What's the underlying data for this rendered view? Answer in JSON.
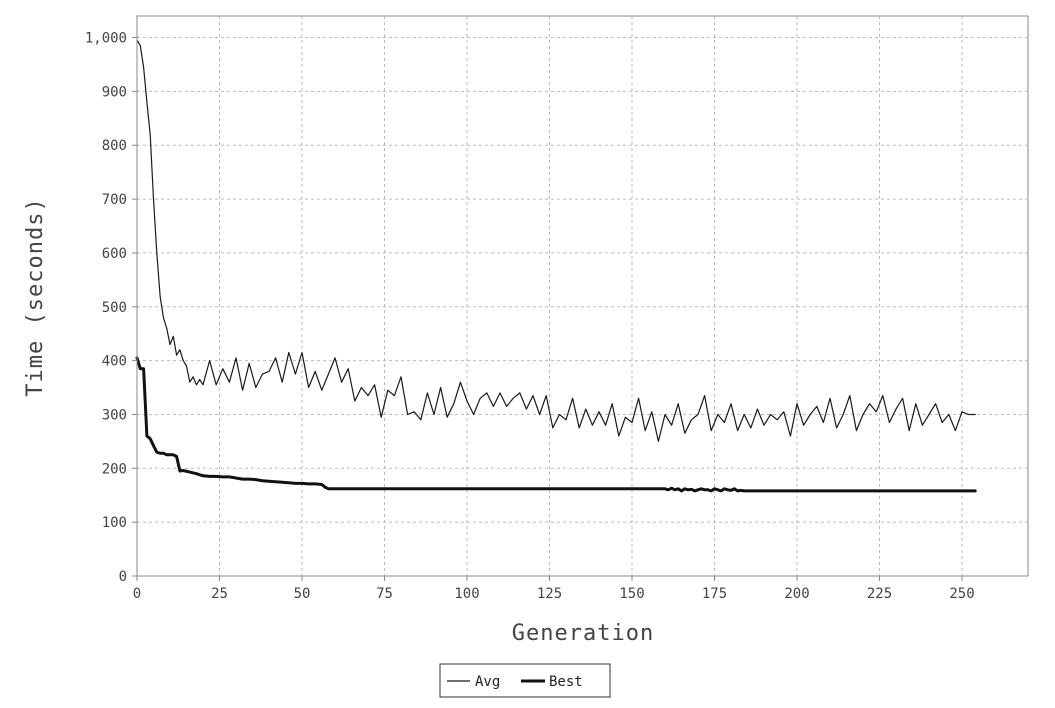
{
  "chart_data": {
    "type": "line",
    "xlabel": "Generation",
    "ylabel": "Time (seconds)",
    "xlim": [
      0,
      270
    ],
    "ylim": [
      0,
      1040
    ],
    "x_ticks": [
      0,
      25,
      50,
      75,
      100,
      125,
      150,
      175,
      200,
      225,
      250
    ],
    "x_tick_labels": [
      "0",
      "25",
      "50",
      "75",
      "100",
      "125",
      "150",
      "175",
      "200",
      "225",
      "250"
    ],
    "y_ticks": [
      0,
      100,
      200,
      300,
      400,
      500,
      600,
      700,
      800,
      900,
      1000
    ],
    "y_tick_labels": [
      "0",
      "100",
      "200",
      "300",
      "400",
      "500",
      "600",
      "700",
      "800",
      "900",
      "1,000"
    ],
    "grid": true,
    "legend_position": "bottom-center",
    "series": [
      {
        "name": "Avg",
        "color": "#1a1a1a",
        "line_width": 1.2,
        "x": [
          0,
          1,
          2,
          3,
          4,
          5,
          6,
          7,
          8,
          9,
          10,
          11,
          12,
          13,
          14,
          15,
          16,
          17,
          18,
          19,
          20,
          22,
          24,
          26,
          28,
          30,
          32,
          34,
          36,
          38,
          40,
          42,
          44,
          46,
          48,
          50,
          52,
          54,
          56,
          58,
          60,
          62,
          64,
          66,
          68,
          70,
          72,
          74,
          76,
          78,
          80,
          82,
          84,
          86,
          88,
          90,
          92,
          94,
          96,
          98,
          100,
          102,
          104,
          106,
          108,
          110,
          112,
          114,
          116,
          118,
          120,
          122,
          124,
          126,
          128,
          130,
          132,
          134,
          136,
          138,
          140,
          142,
          144,
          146,
          148,
          150,
          152,
          154,
          156,
          158,
          160,
          162,
          164,
          166,
          168,
          170,
          172,
          174,
          176,
          178,
          180,
          182,
          184,
          186,
          188,
          190,
          192,
          194,
          196,
          198,
          200,
          202,
          204,
          206,
          208,
          210,
          212,
          214,
          216,
          218,
          220,
          222,
          224,
          226,
          228,
          230,
          232,
          234,
          236,
          238,
          240,
          242,
          244,
          246,
          248,
          250,
          252,
          254
        ],
        "y": [
          995,
          985,
          945,
          880,
          820,
          700,
          600,
          520,
          480,
          460,
          430,
          445,
          410,
          420,
          400,
          390,
          360,
          370,
          355,
          365,
          355,
          400,
          355,
          385,
          360,
          405,
          345,
          395,
          350,
          375,
          380,
          405,
          360,
          415,
          375,
          415,
          350,
          380,
          345,
          375,
          405,
          360,
          385,
          325,
          350,
          335,
          355,
          295,
          345,
          335,
          370,
          300,
          305,
          290,
          340,
          300,
          350,
          295,
          320,
          360,
          325,
          300,
          330,
          340,
          315,
          340,
          315,
          330,
          340,
          310,
          335,
          300,
          335,
          275,
          300,
          290,
          330,
          275,
          310,
          280,
          305,
          280,
          320,
          260,
          295,
          285,
          330,
          270,
          305,
          250,
          300,
          280,
          320,
          265,
          290,
          300,
          335,
          270,
          300,
          285,
          320,
          270,
          300,
          275,
          310,
          280,
          300,
          290,
          305,
          260,
          320,
          280,
          300,
          315,
          285,
          330,
          275,
          300,
          335,
          270,
          300,
          320,
          305,
          335,
          285,
          310,
          330,
          270,
          320,
          280,
          300,
          320,
          285,
          300,
          270,
          305,
          300,
          300
        ]
      },
      {
        "name": "Best",
        "color": "#111111",
        "line_width": 3,
        "x": [
          0,
          1,
          2,
          3,
          4,
          5,
          6,
          7,
          8,
          9,
          10,
          11,
          12,
          13,
          14,
          16,
          18,
          20,
          22,
          24,
          26,
          28,
          30,
          32,
          34,
          36,
          38,
          40,
          42,
          44,
          46,
          48,
          50,
          52,
          54,
          56,
          57,
          58,
          59,
          60,
          70,
          80,
          90,
          100,
          110,
          120,
          130,
          140,
          150,
          160,
          161,
          162,
          163,
          164,
          165,
          166,
          167,
          168,
          169,
          170,
          171,
          172,
          173,
          174,
          175,
          176,
          177,
          178,
          179,
          180,
          181,
          182,
          183,
          184,
          190,
          200,
          210,
          220,
          230,
          240,
          250,
          254
        ],
        "y": [
          405,
          385,
          385,
          260,
          255,
          242,
          230,
          228,
          228,
          225,
          225,
          225,
          222,
          195,
          196,
          193,
          190,
          186,
          185,
          185,
          184,
          184,
          182,
          180,
          180,
          179,
          177,
          176,
          175,
          174,
          173,
          172,
          172,
          171,
          171,
          170,
          165,
          162,
          162,
          162,
          162,
          162,
          162,
          162,
          162,
          162,
          162,
          162,
          162,
          162,
          160,
          163,
          160,
          162,
          158,
          162,
          160,
          161,
          158,
          160,
          162,
          160,
          160,
          158,
          162,
          160,
          158,
          162,
          160,
          159,
          162,
          158,
          159,
          158,
          158,
          158,
          158,
          158,
          158,
          158,
          158,
          158
        ]
      }
    ]
  }
}
